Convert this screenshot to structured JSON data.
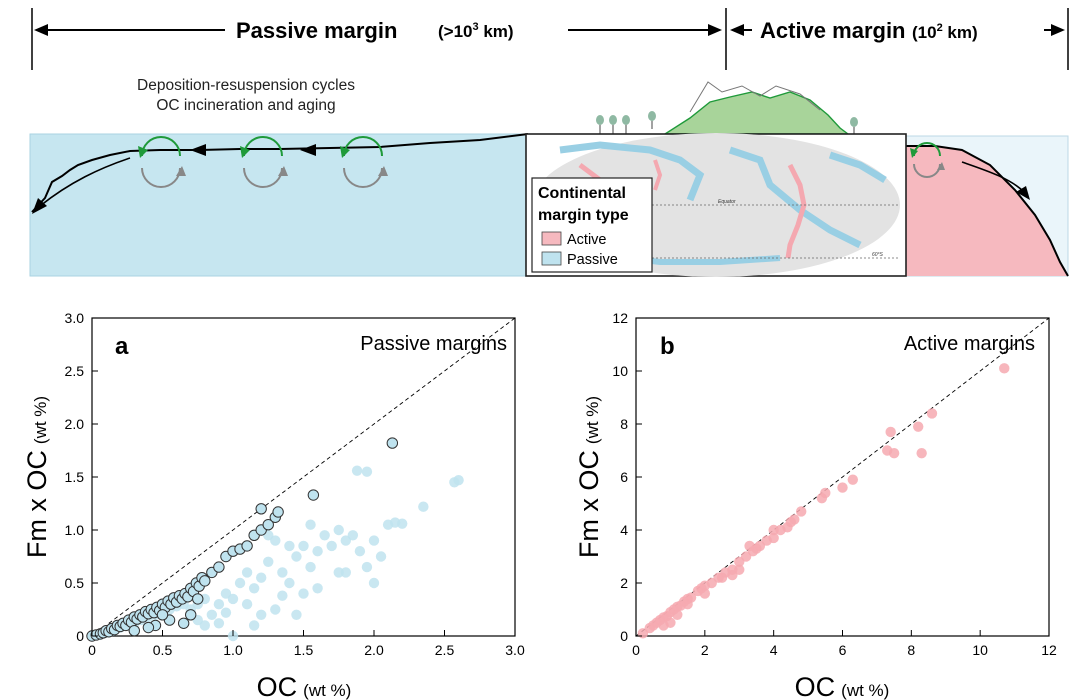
{
  "header": {
    "passive_label": "Passive margin",
    "passive_scale_prefix": "(>10",
    "passive_scale_exp": "3",
    "passive_scale_suffix": " km)",
    "active_label": "Active margin",
    "active_scale_prefix": "(10",
    "active_scale_exp": "2",
    "active_scale_suffix": " km)"
  },
  "schematic": {
    "process_line1": "Deposition-resuspension cycles",
    "process_line2": "OC incineration and aging",
    "map_legend": {
      "title_line1": "Continental",
      "title_line2": "margin type",
      "items": [
        {
          "label": "Active",
          "color": "#f6b9bf"
        },
        {
          "label": "Passive",
          "color": "#bfe3ef"
        }
      ]
    },
    "map_labels": {
      "equator": "Equator",
      "latitude": "60°S"
    }
  },
  "chart_data": [
    {
      "type": "scatter",
      "panel_letter": "a",
      "title": "Passive margins",
      "xlabel_main": "OC",
      "xlabel_unit": "(wt %)",
      "ylabel_main": "Fm x OC",
      "ylabel_unit": "(wt %)",
      "xlim": [
        0,
        3.0
      ],
      "ylim": [
        0,
        3.0
      ],
      "xticks": [
        "0",
        "0.5",
        "1.0",
        "1.5",
        "2.0",
        "2.5",
        "3.0"
      ],
      "yticks": [
        "0",
        "0.5",
        "1.0",
        "1.5",
        "2.0",
        "2.5",
        "3.0"
      ],
      "reference_line": "1:1",
      "series": [
        {
          "color": "#bfe3ef",
          "outlined": false,
          "points": [
            [
              0.05,
              0.01
            ],
            [
              0.1,
              0.03
            ],
            [
              0.15,
              0.05
            ],
            [
              0.2,
              0.08
            ],
            [
              0.25,
              0.1
            ],
            [
              0.3,
              0.12
            ],
            [
              0.35,
              0.15
            ],
            [
              0.4,
              0.18
            ],
            [
              0.45,
              0.2
            ],
            [
              0.5,
              0.22
            ],
            [
              0.55,
              0.25
            ],
            [
              0.6,
              0.28
            ],
            [
              0.65,
              0.3
            ],
            [
              0.7,
              0.25
            ],
            [
              0.75,
              0.3
            ],
            [
              0.8,
              0.35
            ],
            [
              0.85,
              0.2
            ],
            [
              0.9,
              0.3
            ],
            [
              0.95,
              0.4
            ],
            [
              1.0,
              0.35
            ],
            [
              1.05,
              0.5
            ],
            [
              1.1,
              0.3
            ],
            [
              1.15,
              0.45
            ],
            [
              1.2,
              0.55
            ],
            [
              1.25,
              0.7
            ],
            [
              1.3,
              0.25
            ],
            [
              1.35,
              0.6
            ],
            [
              1.4,
              0.5
            ],
            [
              1.45,
              0.75
            ],
            [
              1.5,
              0.85
            ],
            [
              1.55,
              0.65
            ],
            [
              1.6,
              0.45
            ],
            [
              1.65,
              0.95
            ],
            [
              1.7,
              0.85
            ],
            [
              1.75,
              0.6
            ],
            [
              1.8,
              0.9
            ],
            [
              1.85,
              0.95
            ],
            [
              1.9,
              0.8
            ],
            [
              1.95,
              0.65
            ],
            [
              2.0,
              0.5
            ],
            [
              2.05,
              0.75
            ],
            [
              2.1,
              1.05
            ],
            [
              2.15,
              1.07
            ],
            [
              2.2,
              1.06
            ],
            [
              2.35,
              1.22
            ],
            [
              1.88,
              1.56
            ],
            [
              1.95,
              1.55
            ],
            [
              2.57,
              1.45
            ],
            [
              2.6,
              1.47
            ],
            [
              1.0,
              0.0
            ],
            [
              1.25,
              0.95
            ],
            [
              1.4,
              0.85
            ],
            [
              1.5,
              0.4
            ],
            [
              1.2,
              0.2
            ],
            [
              0.8,
              0.1
            ],
            [
              0.95,
              0.22
            ],
            [
              1.1,
              0.6
            ],
            [
              1.3,
              0.9
            ],
            [
              1.6,
              0.8
            ],
            [
              1.75,
              1.0
            ],
            [
              0.75,
              0.15
            ],
            [
              0.9,
              0.12
            ],
            [
              1.15,
              0.1
            ],
            [
              1.35,
              0.38
            ],
            [
              1.45,
              0.2
            ],
            [
              1.55,
              1.05
            ],
            [
              1.8,
              0.6
            ],
            [
              2.0,
              0.9
            ]
          ]
        },
        {
          "color": "#bfe3ef",
          "outlined": true,
          "points": [
            [
              0.0,
              0.0
            ],
            [
              0.03,
              0.01
            ],
            [
              0.06,
              0.02
            ],
            [
              0.08,
              0.03
            ],
            [
              0.1,
              0.05
            ],
            [
              0.12,
              0.04
            ],
            [
              0.14,
              0.07
            ],
            [
              0.16,
              0.06
            ],
            [
              0.18,
              0.1
            ],
            [
              0.2,
              0.09
            ],
            [
              0.22,
              0.12
            ],
            [
              0.24,
              0.1
            ],
            [
              0.26,
              0.15
            ],
            [
              0.28,
              0.13
            ],
            [
              0.3,
              0.18
            ],
            [
              0.32,
              0.16
            ],
            [
              0.34,
              0.2
            ],
            [
              0.36,
              0.18
            ],
            [
              0.38,
              0.23
            ],
            [
              0.4,
              0.21
            ],
            [
              0.42,
              0.25
            ],
            [
              0.44,
              0.22
            ],
            [
              0.46,
              0.27
            ],
            [
              0.48,
              0.24
            ],
            [
              0.5,
              0.3
            ],
            [
              0.52,
              0.27
            ],
            [
              0.54,
              0.33
            ],
            [
              0.56,
              0.3
            ],
            [
              0.58,
              0.36
            ],
            [
              0.6,
              0.32
            ],
            [
              0.62,
              0.38
            ],
            [
              0.64,
              0.35
            ],
            [
              0.66,
              0.4
            ],
            [
              0.68,
              0.37
            ],
            [
              0.7,
              0.45
            ],
            [
              0.72,
              0.42
            ],
            [
              0.74,
              0.5
            ],
            [
              0.76,
              0.47
            ],
            [
              0.78,
              0.55
            ],
            [
              0.8,
              0.52
            ],
            [
              0.85,
              0.6
            ],
            [
              0.9,
              0.65
            ],
            [
              0.95,
              0.75
            ],
            [
              1.0,
              0.8
            ],
            [
              1.05,
              0.82
            ],
            [
              1.1,
              0.85
            ],
            [
              1.15,
              0.95
            ],
            [
              1.2,
              1.0
            ],
            [
              1.25,
              1.05
            ],
            [
              1.3,
              1.12
            ],
            [
              1.32,
              1.17
            ],
            [
              1.2,
              1.2
            ],
            [
              1.57,
              1.33
            ],
            [
              2.13,
              1.82
            ],
            [
              0.3,
              0.05
            ],
            [
              0.45,
              0.1
            ],
            [
              0.55,
              0.15
            ],
            [
              0.65,
              0.12
            ],
            [
              0.7,
              0.2
            ],
            [
              0.75,
              0.35
            ],
            [
              0.4,
              0.08
            ],
            [
              0.5,
              0.2
            ]
          ]
        }
      ]
    },
    {
      "type": "scatter",
      "panel_letter": "b",
      "title": "Active margins",
      "xlabel_main": "OC",
      "xlabel_unit": "(wt %)",
      "ylabel_main": "Fm x OC",
      "ylabel_unit": "(wt %)",
      "xlim": [
        0,
        12
      ],
      "ylim": [
        0,
        12
      ],
      "xticks": [
        "0",
        "2",
        "4",
        "6",
        "8",
        "10",
        "12"
      ],
      "yticks": [
        "0",
        "2",
        "4",
        "6",
        "8",
        "10",
        "12"
      ],
      "reference_line": "1:1",
      "series": [
        {
          "color": "#f6a9b0",
          "outlined": false,
          "points": [
            [
              0.2,
              0.1
            ],
            [
              0.4,
              0.3
            ],
            [
              0.5,
              0.4
            ],
            [
              0.6,
              0.5
            ],
            [
              0.7,
              0.6
            ],
            [
              0.8,
              0.7
            ],
            [
              0.9,
              0.75
            ],
            [
              1.0,
              0.9
            ],
            [
              1.1,
              1.0
            ],
            [
              1.2,
              1.1
            ],
            [
              1.3,
              1.15
            ],
            [
              1.4,
              1.3
            ],
            [
              1.5,
              1.4
            ],
            [
              1.6,
              1.45
            ],
            [
              1.8,
              1.7
            ],
            [
              1.9,
              1.8
            ],
            [
              2.0,
              1.9
            ],
            [
              2.2,
              2.0
            ],
            [
              2.4,
              2.2
            ],
            [
              2.6,
              2.4
            ],
            [
              2.8,
              2.5
            ],
            [
              3.0,
              2.8
            ],
            [
              3.2,
              3.0
            ],
            [
              3.4,
              3.2
            ],
            [
              3.5,
              3.3
            ],
            [
              3.6,
              3.4
            ],
            [
              3.8,
              3.6
            ],
            [
              4.0,
              3.7
            ],
            [
              4.2,
              4.0
            ],
            [
              4.4,
              4.1
            ],
            [
              4.6,
              4.4
            ],
            [
              4.8,
              4.7
            ],
            [
              5.4,
              5.2
            ],
            [
              5.5,
              5.4
            ],
            [
              6.0,
              5.6
            ],
            [
              6.3,
              5.9
            ],
            [
              7.3,
              7.0
            ],
            [
              7.4,
              7.7
            ],
            [
              7.5,
              6.9
            ],
            [
              8.2,
              7.9
            ],
            [
              8.3,
              6.9
            ],
            [
              8.6,
              8.4
            ],
            [
              10.7,
              10.1
            ],
            [
              1.0,
              0.5
            ],
            [
              1.5,
              1.2
            ],
            [
              2.0,
              1.6
            ],
            [
              2.8,
              2.3
            ],
            [
              3.3,
              3.4
            ],
            [
              4.0,
              4.0
            ],
            [
              4.5,
              4.3
            ],
            [
              1.2,
              0.8
            ],
            [
              0.8,
              0.4
            ],
            [
              2.5,
              2.2
            ],
            [
              3.0,
              2.5
            ]
          ]
        }
      ]
    }
  ]
}
